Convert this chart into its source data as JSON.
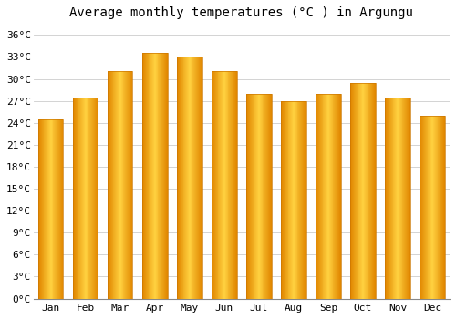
{
  "title": "Average monthly temperatures (°C ) in Argungu",
  "months": [
    "Jan",
    "Feb",
    "Mar",
    "Apr",
    "May",
    "Jun",
    "Jul",
    "Aug",
    "Sep",
    "Oct",
    "Nov",
    "Dec"
  ],
  "values": [
    24.5,
    27.5,
    31.0,
    33.5,
    33.0,
    31.0,
    28.0,
    27.0,
    28.0,
    29.5,
    27.5,
    25.0
  ],
  "bar_color_light": "#FFD060",
  "bar_color_mid": "#FFAA00",
  "bar_color_dark": "#E07800",
  "background_color": "#FFFFFF",
  "grid_color": "#CCCCCC",
  "yticks": [
    0,
    3,
    6,
    9,
    12,
    15,
    18,
    21,
    24,
    27,
    30,
    33,
    36
  ],
  "ylim": [
    0,
    37.5
  ],
  "title_fontsize": 10,
  "tick_fontsize": 8
}
